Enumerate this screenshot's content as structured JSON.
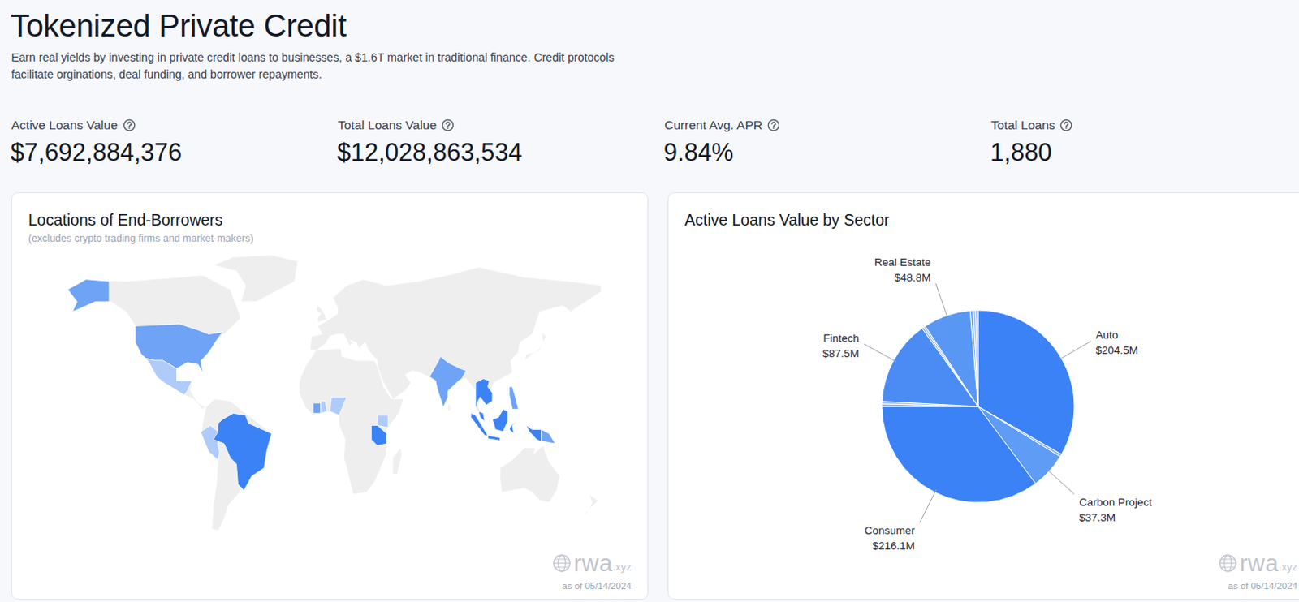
{
  "header": {
    "title": "Tokenized Private Credit",
    "description": "Earn real yields by investing in private credit loans to businesses, a $1.6T market in traditional finance. Credit protocols facilitate orginations, deal funding, and borrower repayments."
  },
  "stats": [
    {
      "label": "Active Loans Value",
      "value": "$7,692,884,376"
    },
    {
      "label": "Total Loans Value",
      "value": "$12,028,863,534"
    },
    {
      "label": "Current Avg. APR",
      "value": "9.84%"
    },
    {
      "label": "Total Loans",
      "value": "1,880"
    }
  ],
  "map": {
    "title": "Locations of End-Borrowers",
    "subtitle": "(excludes crypto trading firms and market-makers)",
    "watermark": [
      "rwa",
      ".xyz"
    ],
    "as_of": "as of 05/14/2024"
  },
  "pie_card": {
    "watermark": [
      "rwa",
      ".xyz"
    ],
    "as_of": "as of 05/14/2024"
  },
  "chart_data": {
    "type": "pie",
    "title": "Active Loans Value by Sector",
    "categories": [
      "Auto",
      null,
      "Carbon Project",
      "Consumer",
      null,
      null,
      "Fintech",
      null,
      null,
      "Real Estate",
      null,
      null,
      null
    ],
    "values": [
      204.5,
      2.6,
      37.3,
      216.1,
      2.6,
      2.6,
      87.5,
      2.0,
      2.0,
      48.8,
      3.0,
      2.5,
      2.5
    ],
    "value_labels": [
      "$204.5M",
      null,
      "$37.3M",
      "$216.1M",
      null,
      null,
      "$87.5M",
      null,
      null,
      "$48.8M",
      null,
      null,
      null
    ],
    "colors": [
      "#3b82f6",
      "#8db6f7",
      "#5e9cf6",
      "#3b82f6",
      "#7eacf6",
      "#9fc1f8",
      "#4a8cf4",
      "#86b2f7",
      "#a6c6f9",
      "#5897f3",
      "#7aa9f6",
      "#9dc0f8",
      "#6ea2f5"
    ],
    "data_labels": true
  }
}
